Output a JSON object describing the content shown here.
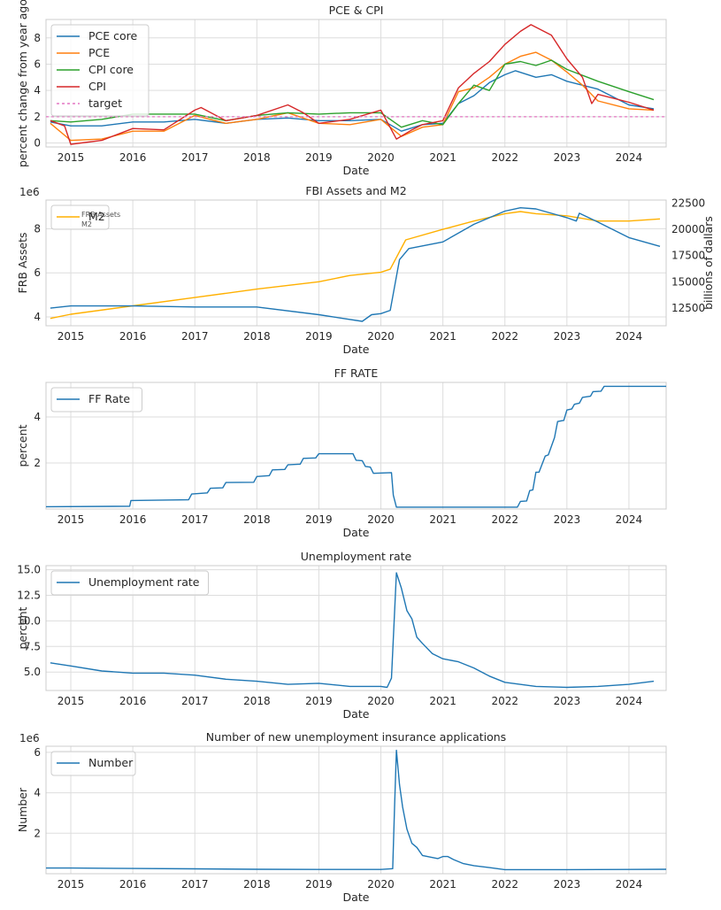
{
  "colors": {
    "blue": "#1f77b4",
    "orange": "#ff7f0e",
    "green": "#2ca02c",
    "red": "#d62728",
    "pink": "#e377c2",
    "gold": "#ffb000",
    "grid": "#dddddd",
    "frame": "#cccccc"
  },
  "chart_data": [
    {
      "type": "line",
      "title": "PCE & CPI",
      "xlabel": "Date",
      "ylabel": "percent change from year ago",
      "xlim": [
        2014.6,
        2024.6
      ],
      "ylim": [
        -0.3,
        9.4
      ],
      "x_ticks": [
        "2015",
        "2016",
        "2017",
        "2018",
        "2019",
        "2020",
        "2021",
        "2022",
        "2023",
        "2024"
      ],
      "y_ticks": [
        "0",
        "2",
        "4",
        "6",
        "8"
      ],
      "grid": true,
      "legend_placement": "upper-left",
      "series": [
        {
          "name": "PCE core",
          "color": "#1f77b4",
          "x": [
            2014.67,
            2015,
            2015.5,
            2016,
            2016.5,
            2017,
            2017.5,
            2018,
            2018.5,
            2019,
            2019.5,
            2020,
            2020.33,
            2020.67,
            2021,
            2021.25,
            2021.5,
            2021.75,
            2022,
            2022.17,
            2022.5,
            2022.75,
            2023,
            2023.5,
            2024,
            2024.4
          ],
          "y": [
            1.6,
            1.3,
            1.3,
            1.6,
            1.6,
            1.8,
            1.5,
            1.8,
            1.9,
            1.7,
            1.7,
            1.8,
            0.9,
            1.4,
            1.5,
            3.0,
            3.6,
            4.6,
            5.2,
            5.5,
            5.0,
            5.2,
            4.7,
            4.1,
            2.9,
            2.6
          ]
        },
        {
          "name": "PCE",
          "color": "#ff7f0e",
          "x": [
            2014.67,
            2015,
            2015.5,
            2016,
            2016.5,
            2017,
            2017.5,
            2018,
            2018.5,
            2019,
            2019.5,
            2020,
            2020.33,
            2020.67,
            2021,
            2021.25,
            2021.5,
            2021.75,
            2022,
            2022.25,
            2022.5,
            2022.75,
            2023,
            2023.25,
            2023.5,
            2024,
            2024.4
          ],
          "y": [
            1.5,
            0.2,
            0.3,
            0.9,
            0.9,
            2.1,
            1.5,
            1.8,
            2.3,
            1.5,
            1.4,
            1.8,
            0.5,
            1.2,
            1.4,
            3.9,
            4.2,
            5.0,
            6.0,
            6.6,
            6.9,
            6.3,
            5.4,
            4.4,
            3.2,
            2.6,
            2.5
          ]
        },
        {
          "name": "CPI core",
          "color": "#2ca02c",
          "x": [
            2014.67,
            2015,
            2015.5,
            2016,
            2016.5,
            2017,
            2017.5,
            2018,
            2018.5,
            2019,
            2019.5,
            2020,
            2020.33,
            2020.67,
            2021,
            2021.25,
            2021.5,
            2021.75,
            2022,
            2022.25,
            2022.5,
            2022.75,
            2023,
            2023.5,
            2024,
            2024.4
          ],
          "y": [
            1.7,
            1.6,
            1.8,
            2.2,
            2.2,
            2.2,
            1.7,
            2.1,
            2.3,
            2.2,
            2.3,
            2.3,
            1.2,
            1.7,
            1.4,
            3.0,
            4.4,
            4.0,
            6.0,
            6.2,
            5.9,
            6.3,
            5.6,
            4.7,
            3.9,
            3.3
          ]
        },
        {
          "name": "CPI",
          "color": "#d62728",
          "x": [
            2014.67,
            2014.9,
            2015,
            2015.5,
            2016,
            2016.5,
            2017,
            2017.1,
            2017.5,
            2018,
            2018.5,
            2018.75,
            2019,
            2019.5,
            2020,
            2020.25,
            2020.5,
            2020.67,
            2021,
            2021.25,
            2021.5,
            2021.75,
            2022,
            2022.25,
            2022.42,
            2022.75,
            2023,
            2023.25,
            2023.4,
            2023.5,
            2024,
            2024.4
          ],
          "y": [
            1.7,
            1.3,
            -0.1,
            0.2,
            1.1,
            1.0,
            2.5,
            2.7,
            1.7,
            2.1,
            2.9,
            2.3,
            1.5,
            1.8,
            2.5,
            0.3,
            1.0,
            1.4,
            1.7,
            4.2,
            5.3,
            6.2,
            7.5,
            8.5,
            9.0,
            8.2,
            6.4,
            5.0,
            3.0,
            3.7,
            3.1,
            2.5
          ]
        },
        {
          "name": "target",
          "color": "#e377c2",
          "x": [
            2014.6,
            2024.6
          ],
          "y": [
            2,
            2
          ]
        }
      ]
    },
    {
      "type": "line",
      "title": "FBI Assets and M2",
      "xlabel": "Date",
      "ylabel": "FRB Assets",
      "ylabel_right": "billions of dallars",
      "y_multiplier": "1e6",
      "xlim": [
        2014.6,
        2024.6
      ],
      "ylim": [
        3.6,
        9.3
      ],
      "ylim_right": [
        10800,
        22800
      ],
      "x_ticks": [
        "2015",
        "2016",
        "2017",
        "2018",
        "2019",
        "2020",
        "2021",
        "2022",
        "2023",
        "2024"
      ],
      "y_ticks": [
        "4",
        "6",
        "8"
      ],
      "y_ticks_right": [
        "12500",
        "15000",
        "17500",
        "20000",
        "22500"
      ],
      "grid": true,
      "legend_placement": "upper-left",
      "legend_ghost_text": [
        "FRB Assets",
        "M2"
      ],
      "series": [
        {
          "name": "M2",
          "axis": "right",
          "color": "#ffb000",
          "x": [
            2014.67,
            2015,
            2016,
            2017,
            2018,
            2019,
            2019.5,
            2020,
            2020.15,
            2020.4,
            2021,
            2021.5,
            2022,
            2022.25,
            2022.5,
            2023,
            2023.5,
            2024,
            2024.5
          ],
          "y": [
            11500,
            11900,
            12700,
            13500,
            14300,
            15000,
            15600,
            15900,
            16200,
            19000,
            20000,
            20800,
            21500,
            21700,
            21500,
            21300,
            20800,
            20800,
            21000
          ]
        },
        {
          "name": "FRB Assets",
          "axis": "left",
          "color": "#1f77b4",
          "x": [
            2014.67,
            2015,
            2016,
            2017,
            2018,
            2019,
            2019.7,
            2019.85,
            2020,
            2020.15,
            2020.3,
            2020.45,
            2021,
            2021.5,
            2022,
            2022.25,
            2022.5,
            2023,
            2023.15,
            2023.2,
            2023.5,
            2024,
            2024.5
          ],
          "y": [
            4.4,
            4.5,
            4.5,
            4.45,
            4.45,
            4.1,
            3.8,
            4.1,
            4.15,
            4.3,
            6.6,
            7.1,
            7.4,
            8.2,
            8.8,
            8.95,
            8.9,
            8.5,
            8.35,
            8.7,
            8.3,
            7.6,
            7.2
          ]
        }
      ]
    },
    {
      "type": "line",
      "title": "FF RATE",
      "xlabel": "Date",
      "ylabel": "percent",
      "xlim": [
        2014.6,
        2024.6
      ],
      "ylim": [
        0,
        5.5
      ],
      "x_ticks": [
        "2015",
        "2016",
        "2017",
        "2018",
        "2019",
        "2020",
        "2021",
        "2022",
        "2023",
        "2024"
      ],
      "y_ticks": [
        "2",
        "4"
      ],
      "grid": true,
      "legend_placement": "upper-left",
      "series": [
        {
          "name": "FF Rate",
          "color": "#1f77b4",
          "x": [
            2014.6,
            2015.95,
            2015.97,
            2016.9,
            2016.95,
            2017.2,
            2017.25,
            2017.45,
            2017.5,
            2017.95,
            2018.0,
            2018.2,
            2018.25,
            2018.45,
            2018.5,
            2018.7,
            2018.75,
            2018.95,
            2019.0,
            2019.55,
            2019.6,
            2019.7,
            2019.75,
            2019.83,
            2019.88,
            2020.17,
            2020.2,
            2020.25,
            2022.2,
            2022.25,
            2022.35,
            2022.4,
            2022.45,
            2022.5,
            2022.55,
            2022.65,
            2022.7,
            2022.8,
            2022.85,
            2022.95,
            2023.0,
            2023.08,
            2023.12,
            2023.2,
            2023.25,
            2023.38,
            2023.42,
            2023.55,
            2023.6,
            2024.6
          ],
          "y": [
            0.1,
            0.12,
            0.37,
            0.4,
            0.65,
            0.7,
            0.9,
            0.92,
            1.15,
            1.16,
            1.41,
            1.45,
            1.7,
            1.72,
            1.92,
            1.95,
            2.2,
            2.22,
            2.4,
            2.4,
            2.12,
            2.1,
            1.85,
            1.82,
            1.55,
            1.58,
            0.6,
            0.08,
            0.08,
            0.33,
            0.35,
            0.8,
            0.83,
            1.6,
            1.6,
            2.3,
            2.35,
            3.1,
            3.8,
            3.85,
            4.3,
            4.35,
            4.55,
            4.6,
            4.85,
            4.9,
            5.1,
            5.12,
            5.33,
            5.33
          ]
        }
      ]
    },
    {
      "type": "line",
      "title": "Unemployment rate",
      "xlabel": "Date",
      "ylabel": "percent",
      "xlim": [
        2014.6,
        2024.6
      ],
      "ylim": [
        3.2,
        15.4
      ],
      "x_ticks": [
        "2015",
        "2016",
        "2017",
        "2018",
        "2019",
        "2020",
        "2021",
        "2022",
        "2023",
        "2024"
      ],
      "y_ticks": [
        "5.0",
        "7.5",
        "10.0",
        "12.5",
        "15.0"
      ],
      "grid": true,
      "legend_placement": "upper-left",
      "series": [
        {
          "name": "Unemployment rate",
          "color": "#1f77b4",
          "x": [
            2014.67,
            2015,
            2015.5,
            2016,
            2016.5,
            2017,
            2017.5,
            2018,
            2018.5,
            2019,
            2019.5,
            2020,
            2020.1,
            2020.17,
            2020.25,
            2020.33,
            2020.42,
            2020.5,
            2020.58,
            2020.67,
            2020.83,
            2021,
            2021.25,
            2021.5,
            2021.75,
            2022,
            2022.5,
            2023,
            2023.5,
            2024,
            2024.4
          ],
          "y": [
            5.9,
            5.6,
            5.1,
            4.9,
            4.9,
            4.7,
            4.3,
            4.1,
            3.8,
            3.9,
            3.6,
            3.6,
            3.5,
            4.4,
            14.7,
            13.2,
            11.0,
            10.2,
            8.4,
            7.8,
            6.8,
            6.3,
            6.0,
            5.4,
            4.6,
            4.0,
            3.6,
            3.5,
            3.6,
            3.8,
            4.1
          ]
        }
      ]
    },
    {
      "type": "line",
      "title": "Number of new unemployment insurance applications",
      "xlabel": "Date",
      "ylabel": "Number",
      "y_multiplier": "1e6",
      "xlim": [
        2014.6,
        2024.6
      ],
      "ylim": [
        0,
        6.3
      ],
      "x_ticks": [
        "2015",
        "2016",
        "2017",
        "2018",
        "2019",
        "2020",
        "2021",
        "2022",
        "2023",
        "2024"
      ],
      "y_ticks": [
        "2",
        "4",
        "6"
      ],
      "grid": true,
      "legend_placement": "upper-left",
      "series": [
        {
          "name": "Number",
          "color": "#1f77b4",
          "x": [
            2014.6,
            2015,
            2016,
            2017,
            2018,
            2019,
            2020,
            2020.19,
            2020.22,
            2020.25,
            2020.3,
            2020.35,
            2020.42,
            2020.5,
            2020.58,
            2020.67,
            2020.75,
            2020.83,
            2020.92,
            2021,
            2021.08,
            2021.17,
            2021.33,
            2021.5,
            2021.75,
            2022,
            2023,
            2024,
            2024.6
          ],
          "y": [
            0.28,
            0.28,
            0.26,
            0.24,
            0.22,
            0.21,
            0.21,
            0.25,
            3.3,
            6.1,
            4.4,
            3.3,
            2.2,
            1.5,
            1.3,
            0.9,
            0.85,
            0.8,
            0.75,
            0.85,
            0.85,
            0.7,
            0.5,
            0.4,
            0.3,
            0.2,
            0.2,
            0.21,
            0.22
          ]
        }
      ]
    }
  ]
}
